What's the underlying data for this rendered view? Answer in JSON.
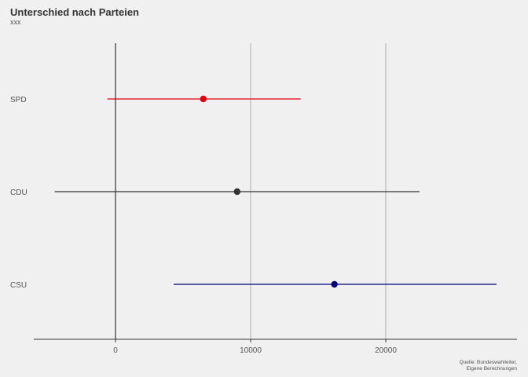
{
  "title": "Unterschied nach Parteien",
  "subtitle": "xxx",
  "caption": [
    "Quelle: Bundeswahlleiter,",
    "Eigene Berechnungen"
  ],
  "chart_data": {
    "type": "scatter",
    "subtype": "point-range",
    "title": "Unterschied nach Parteien",
    "subtitle": "xxx",
    "xlabel": "",
    "ylabel": "",
    "xlim": [
      -6000,
      30000
    ],
    "x_ticks": [
      0,
      10000,
      20000
    ],
    "x_tick_labels": [
      "0",
      "10000",
      "20000"
    ],
    "grid": "vertical major lines",
    "zero_line": true,
    "legend": "none",
    "categories": [
      "SPD",
      "CDU",
      "CSU"
    ],
    "series": [
      {
        "category": "SPD",
        "estimate": 6500,
        "low": -600,
        "high": 13700,
        "color": "#e3000f"
      },
      {
        "category": "CDU",
        "estimate": 9000,
        "low": -4500,
        "high": 22500,
        "color": "#333333"
      },
      {
        "category": "CSU",
        "estimate": 16200,
        "low": 4300,
        "high": 28200,
        "color": "#000080"
      }
    ]
  }
}
